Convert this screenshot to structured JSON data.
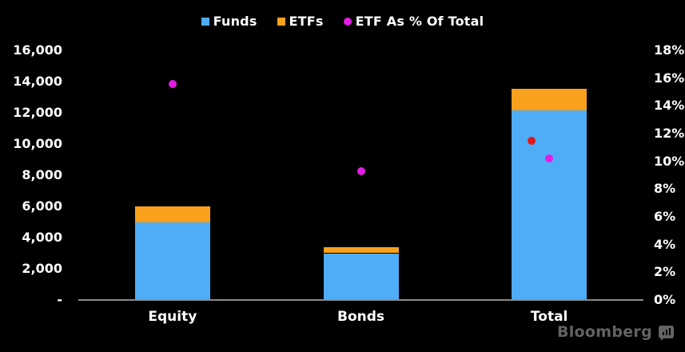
{
  "legend": {
    "items": [
      {
        "label": "Funds",
        "swatch": "square",
        "color": "#4FADF7"
      },
      {
        "label": "ETFs",
        "swatch": "square",
        "color": "#F9A11D"
      },
      {
        "label": "ETF As % Of Total",
        "swatch": "circle",
        "color": "#E31DE3"
      }
    ]
  },
  "chart_data": {
    "type": "bar",
    "stacked": true,
    "title": "",
    "grid": false,
    "background": "#000000",
    "legend_position": "top-center",
    "categories": [
      "Equity",
      "Bonds",
      "Total"
    ],
    "series": [
      {
        "name": "Funds",
        "color": "#4FADF7",
        "values": [
          5000,
          3000,
          12150
        ]
      },
      {
        "name": "ETFs",
        "color": "#F9A11D",
        "values": [
          1000,
          400,
          1400
        ]
      }
    ],
    "point_series": [
      {
        "name": "ETF As % Of Total",
        "color": "#E31DE3",
        "axis": "right",
        "values": [
          15.6,
          9.3,
          10.2
        ]
      }
    ],
    "extra_markers": [
      {
        "name": "unlabeled-red-dot",
        "category": "Total",
        "category_index": 2,
        "value": 11.5,
        "axis": "right",
        "color": "#E21A1A",
        "dx": -22
      }
    ],
    "left_axis": {
      "min": 0,
      "max": 16000,
      "step": 2000,
      "ticks": [
        "16,000",
        "14,000",
        "12,000",
        "10,000",
        "8,000",
        "6,000",
        "4,000",
        "2,000",
        "-"
      ]
    },
    "right_axis": {
      "min": 0,
      "max": 18,
      "step": 2,
      "ticks": [
        "18%",
        "16%",
        "14%",
        "12%",
        "10%",
        "8%",
        "6%",
        "4%",
        "2%",
        "0%"
      ]
    }
  },
  "branding": {
    "name": "Bloomberg"
  }
}
